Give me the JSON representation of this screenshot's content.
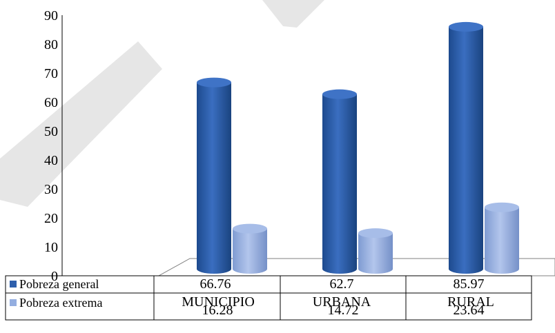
{
  "chart_data": {
    "type": "bar",
    "style": "3d-cylinder",
    "categories": [
      "MUNICIPIO",
      "URBANA",
      "RURAL"
    ],
    "series": [
      {
        "name": "Pobreza general",
        "values": [
          66.76,
          62.7,
          85.97
        ],
        "color": "#2e5fac"
      },
      {
        "name": "Pobreza extrema",
        "values": [
          16.28,
          14.72,
          23.64
        ],
        "color": "#94aee0"
      }
    ],
    "y_ticks": [
      "0",
      "10",
      "20",
      "30",
      "40",
      "50",
      "60",
      "70",
      "80",
      "90"
    ],
    "ylim": [
      0,
      90
    ],
    "table_values": [
      [
        "66.76",
        "62.7",
        "85.97"
      ],
      [
        "16.28",
        "14.72",
        "23.64"
      ]
    ],
    "legend": "data-table-left",
    "grid": false,
    "title": "",
    "xlabel": "",
    "ylabel": ""
  },
  "overlay_color": "#e6e6e6"
}
